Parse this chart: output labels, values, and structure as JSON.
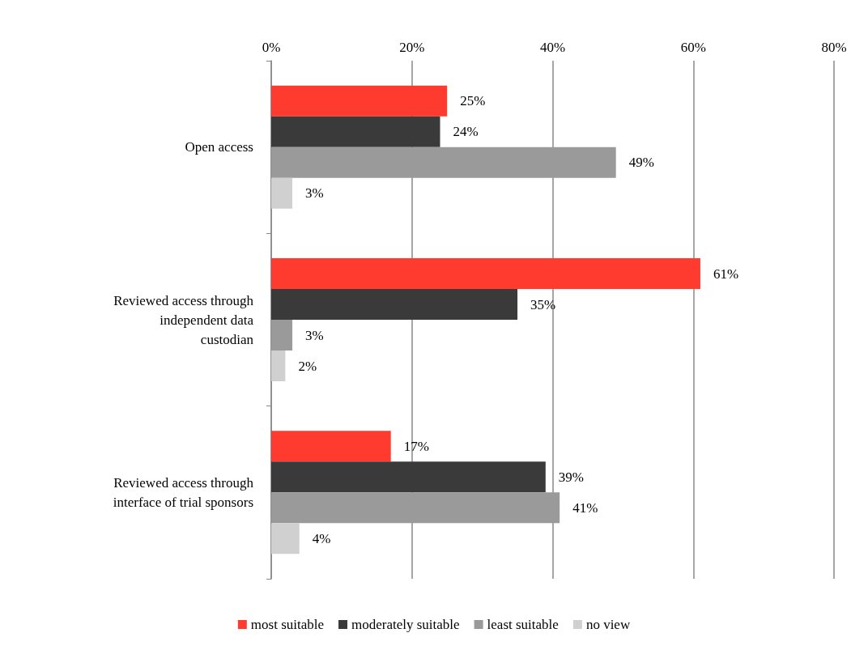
{
  "chart_data": {
    "type": "bar",
    "orientation": "horizontal",
    "categories": [
      "Open access",
      "Reviewed access through\nindependent data\ncustodian",
      "Reviewed access through\ninterface of trial sponsors"
    ],
    "series": [
      {
        "name": "most suitable",
        "color": "#ff3b2f",
        "values": [
          25,
          61,
          17
        ],
        "value_labels": [
          "25%",
          "61%",
          "17%"
        ]
      },
      {
        "name": "moderately suitable",
        "color": "#3a3a3a",
        "values": [
          24,
          35,
          39
        ],
        "value_labels": [
          "24%",
          "35%",
          "39%"
        ]
      },
      {
        "name": "least suitable",
        "color": "#9a9a9a",
        "values": [
          49,
          3,
          41
        ],
        "value_labels": [
          "49%",
          "3%",
          "41%"
        ]
      },
      {
        "name": "no view",
        "color": "#d0d0d0",
        "values": [
          3,
          2,
          4
        ],
        "value_labels": [
          "3%",
          "2%",
          "4%"
        ]
      }
    ],
    "xlim": [
      0,
      80
    ],
    "xticks": [
      {
        "value": 0,
        "label": "0%"
      },
      {
        "value": 20,
        "label": "20%"
      },
      {
        "value": 40,
        "label": "40%"
      },
      {
        "value": 60,
        "label": "60%"
      },
      {
        "value": 80,
        "label": "80%"
      }
    ],
    "grid": "x",
    "legend": "bottom"
  }
}
